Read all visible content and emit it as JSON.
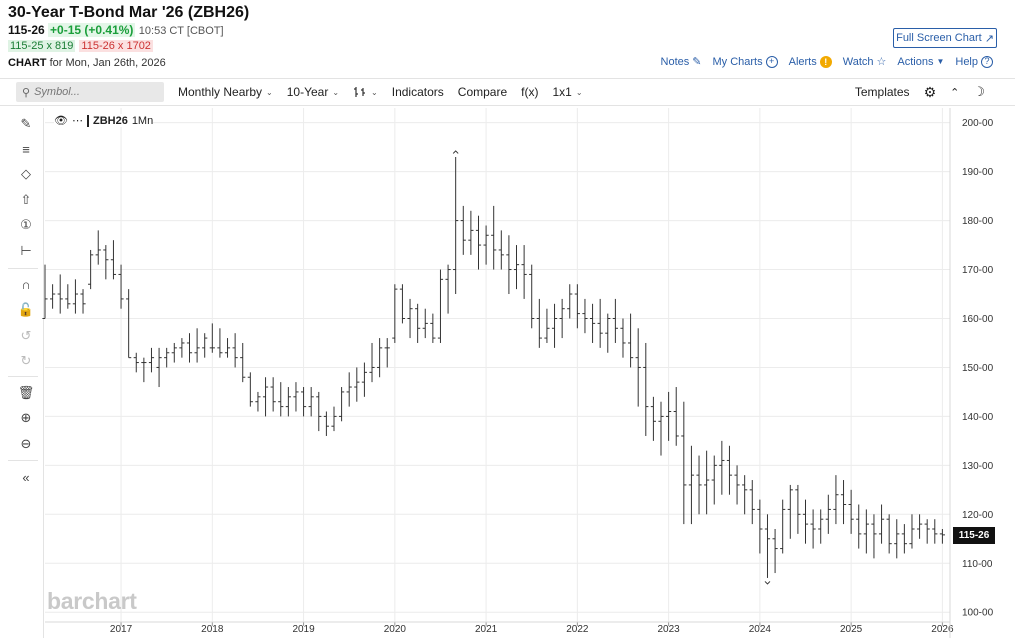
{
  "header": {
    "title": "30-Year T-Bond Mar '26 (ZBH26)",
    "last": "115-26",
    "change": "+0-15 (+0.41%)",
    "time": "10:53 CT [CBOT]",
    "bid": "115-25 x 819",
    "ask": "115-26 x 1702",
    "chart_label": "CHART",
    "chart_date": "for Mon, Jan 26th, 2026",
    "full_screen": "Full Screen Chart"
  },
  "links": {
    "notes": "Notes",
    "my_charts": "My Charts",
    "alerts": "Alerts",
    "watch": "Watch",
    "actions": "Actions",
    "help": "Help"
  },
  "toolbar": {
    "search_placeholder": "Symbol...",
    "period": "Monthly Nearby",
    "range": "10-Year",
    "indicators": "Indicators",
    "compare": "Compare",
    "fx": "f(x)",
    "layout": "1x1",
    "templates": "Templates"
  },
  "legend": {
    "symbol": "ZBH26",
    "interval": "1Mn"
  },
  "watermark": "barchart",
  "colors": {
    "accent": "#2a5ea8",
    "up": "#1a9e3a",
    "down": "#cc3333",
    "bars": "#333333"
  },
  "icons": [
    "eye-icon",
    "pencil-line-icon",
    "fib-icon",
    "shape-icon",
    "arrow-icon",
    "annotation-icon",
    "measure-icon",
    "magnet-icon",
    "unlock-icon",
    "undo-icon",
    "redo-icon",
    "trash-icon",
    "zoom-in-icon",
    "zoom-out-icon",
    "collapse-icon",
    "gear-icon",
    "chevron-up-icon",
    "moon-icon"
  ],
  "chart_data": {
    "type": "ohlc",
    "interval": "monthly",
    "y_ticks": [
      "100-00",
      "110-00",
      "120-00",
      "130-00",
      "140-00",
      "150-00",
      "160-00",
      "170-00",
      "180-00",
      "190-00",
      "200-00"
    ],
    "x_ticks": [
      "2017",
      "2018",
      "2019",
      "2020",
      "2021",
      "2022",
      "2023",
      "2024",
      "2025",
      "2026"
    ],
    "ylim": [
      98,
      203
    ],
    "xlim": [
      "2016-03",
      "2026-02"
    ],
    "last_price_label": "115-26",
    "last_price": 115.8,
    "start": "2016-03",
    "bars": [
      [
        160,
        171,
        160,
        164
      ],
      [
        164,
        167,
        162,
        165
      ],
      [
        165,
        169,
        161,
        164
      ],
      [
        164,
        167,
        162,
        163
      ],
      [
        163,
        168,
        161,
        165
      ],
      [
        165,
        166,
        161,
        163
      ],
      [
        167,
        174,
        166,
        173
      ],
      [
        173,
        178,
        171,
        174
      ],
      [
        174,
        175,
        168,
        172
      ],
      [
        172,
        176,
        168,
        169
      ],
      [
        169,
        171,
        162,
        164
      ],
      [
        164,
        166,
        152,
        152
      ],
      [
        152,
        153,
        149,
        151
      ],
      [
        151,
        152,
        147,
        151
      ],
      [
        151,
        154,
        149,
        152
      ],
      [
        150,
        154,
        146,
        152
      ],
      [
        152,
        154,
        150,
        153
      ],
      [
        153,
        155,
        151,
        154
      ],
      [
        154,
        156,
        152,
        155
      ],
      [
        155,
        157,
        151,
        153
      ],
      [
        153,
        158,
        151,
        154
      ],
      [
        154,
        157,
        152,
        156
      ],
      [
        154,
        159,
        153,
        154
      ],
      [
        154,
        158,
        152,
        153
      ],
      [
        153,
        156,
        152,
        154
      ],
      [
        154,
        157,
        150,
        152
      ],
      [
        152,
        155,
        147,
        148
      ],
      [
        148,
        149,
        142,
        143
      ],
      [
        143,
        145,
        141,
        144
      ],
      [
        144,
        148,
        140,
        146
      ],
      [
        146,
        148,
        141,
        143
      ],
      [
        143,
        147,
        140,
        142
      ],
      [
        142,
        146,
        140,
        144
      ],
      [
        144,
        147,
        141,
        145
      ],
      [
        145,
        146,
        140,
        142
      ],
      [
        142,
        146,
        140,
        144
      ],
      [
        144,
        145,
        137,
        140
      ],
      [
        140,
        141,
        136,
        138
      ],
      [
        138,
        142,
        137,
        140
      ],
      [
        140,
        146,
        139,
        145
      ],
      [
        145,
        149,
        142,
        146
      ],
      [
        146,
        150,
        143,
        147
      ],
      [
        147,
        151,
        144,
        149
      ],
      [
        149,
        155,
        147,
        150
      ],
      [
        150,
        156,
        148,
        154
      ],
      [
        154,
        156,
        150,
        154
      ],
      [
        156,
        167,
        155,
        166
      ],
      [
        166,
        167,
        159,
        160
      ],
      [
        160,
        164,
        156,
        162
      ],
      [
        162,
        163,
        155,
        158
      ],
      [
        158,
        162,
        156,
        159
      ],
      [
        159,
        161,
        155,
        156
      ],
      [
        156,
        170,
        155,
        168
      ],
      [
        168,
        171,
        161,
        170
      ],
      [
        170,
        193,
        165,
        180
      ],
      [
        180,
        183,
        173,
        176
      ],
      [
        176,
        182,
        173,
        178
      ],
      [
        178,
        181,
        170,
        175
      ],
      [
        175,
        179,
        171,
        177
      ],
      [
        177,
        183,
        170,
        174
      ],
      [
        174,
        178,
        170,
        173
      ],
      [
        173,
        177,
        165,
        170
      ],
      [
        170,
        175,
        166,
        171
      ],
      [
        171,
        175,
        164,
        169
      ],
      [
        169,
        171,
        158,
        160
      ],
      [
        160,
        164,
        154,
        156
      ],
      [
        156,
        162,
        155,
        158
      ],
      [
        158,
        163,
        154,
        160
      ],
      [
        160,
        164,
        156,
        162
      ],
      [
        162,
        167,
        160,
        165
      ],
      [
        165,
        167,
        158,
        161
      ],
      [
        161,
        164,
        157,
        160
      ],
      [
        160,
        163,
        155,
        159
      ],
      [
        159,
        164,
        154,
        157
      ],
      [
        157,
        161,
        153,
        160
      ],
      [
        160,
        164,
        155,
        158
      ],
      [
        158,
        160,
        152,
        155
      ],
      [
        155,
        161,
        150,
        152
      ],
      [
        152,
        158,
        142,
        150
      ],
      [
        150,
        155,
        136,
        142
      ],
      [
        142,
        144,
        135,
        139
      ],
      [
        139,
        143,
        132,
        140
      ],
      [
        140,
        145,
        135,
        141
      ],
      [
        141,
        146,
        134,
        136
      ],
      [
        136,
        143,
        118,
        126
      ],
      [
        126,
        134,
        118,
        128
      ],
      [
        128,
        132,
        120,
        126
      ],
      [
        126,
        133,
        120,
        127
      ],
      [
        127,
        132,
        122,
        130
      ],
      [
        130,
        135,
        124,
        131
      ],
      [
        131,
        134,
        124,
        128
      ],
      [
        128,
        130,
        122,
        126
      ],
      [
        126,
        128,
        120,
        125
      ],
      [
        125,
        127,
        118,
        121
      ],
      [
        121,
        123,
        112,
        117
      ],
      [
        117,
        120,
        107,
        115
      ],
      [
        115,
        117,
        108,
        113
      ],
      [
        113,
        123,
        112,
        121
      ],
      [
        121,
        126,
        115,
        125
      ],
      [
        125,
        126,
        116,
        120
      ],
      [
        120,
        123,
        114,
        118
      ],
      [
        118,
        121,
        113,
        117
      ],
      [
        117,
        121,
        114,
        119
      ],
      [
        119,
        124,
        116,
        121
      ],
      [
        121,
        128,
        118,
        124
      ],
      [
        124,
        127,
        118,
        122
      ],
      [
        122,
        125,
        116,
        119
      ],
      [
        119,
        122,
        113,
        116
      ],
      [
        116,
        121,
        112,
        118
      ],
      [
        118,
        120,
        111,
        116
      ],
      [
        116,
        122,
        114,
        119
      ],
      [
        119,
        120,
        112,
        114
      ],
      [
        114,
        119,
        111,
        116
      ],
      [
        116,
        118,
        112,
        114
      ],
      [
        114,
        120,
        113,
        117
      ],
      [
        117,
        120,
        115,
        118
      ],
      [
        118,
        119,
        114,
        117
      ],
      [
        117,
        119,
        114,
        116
      ],
      [
        116,
        117,
        114,
        115.8
      ]
    ]
  }
}
